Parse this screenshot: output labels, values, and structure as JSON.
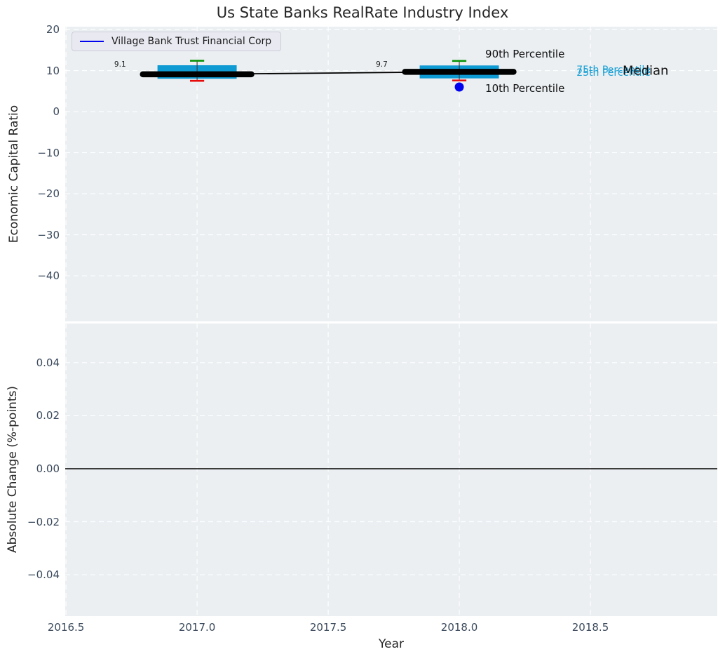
{
  "title": "Us State Banks RealRate Industry Index",
  "legend": {
    "label": "Village Bank Trust Financial Corp"
  },
  "chart_data": {
    "type": "boxplot",
    "title": "Us State Banks RealRate Industry Index",
    "legend": [
      "Village Bank Trust Financial Corp"
    ],
    "panels": [
      {
        "id": "top",
        "ylabel": "Economic Capital Ratio",
        "xlim": [
          2016.497,
          2018.984
        ],
        "ylim": [
          -51.1,
          20.7
        ],
        "grid": true,
        "show_xtick_labels": false,
        "xticks": [
          {
            "v": 2016.5,
            "label": "2016.5"
          },
          {
            "v": 2017.0,
            "label": "2017.0"
          },
          {
            "v": 2017.5,
            "label": "2017.5"
          },
          {
            "v": 2018.0,
            "label": "2018.0"
          },
          {
            "v": 2018.5,
            "label": "2018.5"
          }
        ],
        "yticks": [
          {
            "v": 20,
            "label": "20"
          },
          {
            "v": 10,
            "label": "10"
          },
          {
            "v": 0,
            "label": "0"
          },
          {
            "v": -10,
            "label": "−10"
          },
          {
            "v": -20,
            "label": "−20"
          },
          {
            "v": -30,
            "label": "−30"
          },
          {
            "v": -40,
            "label": "−40"
          }
        ],
        "boxes": [
          {
            "x": 2017,
            "median": 9.1,
            "q1": 8.0,
            "q3": 11.3,
            "p10": 7.5,
            "p90": 12.4,
            "median_label": "9.1"
          },
          {
            "x": 2018,
            "median": 9.7,
            "q1": 8.1,
            "q3": 11.25,
            "p10": 7.6,
            "p90": 12.35,
            "median_label": "9.7"
          }
        ],
        "median_line": {
          "x": [
            2017,
            2018
          ],
          "y": [
            9.1,
            9.7
          ]
        },
        "company_point": {
          "x": 2018,
          "y": 6.0,
          "name": "Village Bank Trust Financial Corp"
        },
        "annotations": [
          {
            "text": "9.1",
            "x": 2016.684,
            "y": 11.4,
            "size": 10.5,
            "color": "#1a1a1a"
          },
          {
            "text": "9.7",
            "x": 2017.682,
            "y": 11.4,
            "size": 10.5,
            "color": "#1a1a1a"
          },
          {
            "text": "90th Percentile",
            "x": 2018.099,
            "y": 14.0,
            "size": 15,
            "color": "#111111"
          },
          {
            "text": "10th Percentile",
            "x": 2018.099,
            "y": 5.7,
            "size": 15,
            "color": "#111111"
          },
          {
            "text": "75th Percentile",
            "x": 2018.447,
            "y": 10.15,
            "size": 14,
            "color": "#1ba0d4"
          },
          {
            "text": "25th Percentile",
            "x": 2018.447,
            "y": 9.5,
            "size": 14,
            "color": "#1ba0d4"
          },
          {
            "text": "Median",
            "x": 2018.623,
            "y": 9.9,
            "size": 18,
            "color": "#111111"
          }
        ],
        "style": {
          "box_halfwidth_years": 0.151,
          "cap_halfwidth_years": 0.027,
          "median_segment_halfwidth_years": 0.207
        }
      },
      {
        "id": "bottom",
        "ylabel": "Absolute Change (%-points)",
        "xlabel": "Year",
        "xlim": [
          2016.497,
          2018.984
        ],
        "ylim": [
          -0.0556,
          0.0548
        ],
        "grid": true,
        "show_xtick_labels": true,
        "zero_line": 0.0,
        "xticks": [
          {
            "v": 2016.5,
            "label": "2016.5"
          },
          {
            "v": 2017.0,
            "label": "2017.0"
          },
          {
            "v": 2017.5,
            "label": "2017.5"
          },
          {
            "v": 2018.0,
            "label": "2018.0"
          },
          {
            "v": 2018.5,
            "label": "2018.5"
          }
        ],
        "yticks": [
          {
            "v": 0.04,
            "label": "0.04"
          },
          {
            "v": 0.02,
            "label": "0.02"
          },
          {
            "v": 0.0,
            "label": "0.00"
          },
          {
            "v": -0.02,
            "label": "−0.02"
          },
          {
            "v": -0.04,
            "label": "−0.04"
          }
        ]
      }
    ],
    "colors": {
      "box_fill": "#0e9ad2",
      "whisker": "#3a3a3a",
      "cap_top": "#089308",
      "cap_bottom": "#e80b0b",
      "median_line": "#000000",
      "company": "#0202ee",
      "grid": "#ffffff",
      "axes_bg": "#ebeff2",
      "tick_label": "#3b4a5c",
      "zero_line": "#000000"
    }
  }
}
